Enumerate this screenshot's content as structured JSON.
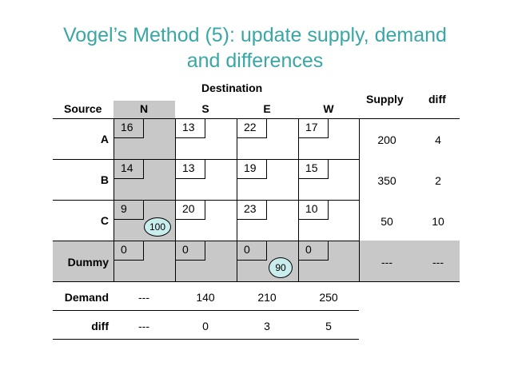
{
  "title": {
    "line1": "Vogel’s Method (5): update supply, demand",
    "line2": "and differences"
  },
  "headers": {
    "destination": "Destination",
    "source": "Source",
    "supply": "Supply",
    "diff": "diff"
  },
  "columns": [
    "N",
    "S",
    "E",
    "W"
  ],
  "rows": [
    {
      "label": "A",
      "costs": [
        "16",
        "13",
        "22",
        "17"
      ],
      "supply": "200",
      "diff": "4"
    },
    {
      "label": "B",
      "costs": [
        "14",
        "13",
        "19",
        "15"
      ],
      "supply": "350",
      "diff": "2"
    },
    {
      "label": "C",
      "costs": [
        "9",
        "20",
        "23",
        "10"
      ],
      "supply": "50",
      "diff": "10"
    },
    {
      "label": "Dummy",
      "costs": [
        "0",
        "0",
        "0",
        "0"
      ],
      "supply": "---",
      "diff": "---"
    }
  ],
  "allocations": {
    "C_N": "100",
    "Dummy_E": "90"
  },
  "demand": {
    "label": "Demand",
    "values": [
      "---",
      "140",
      "210",
      "250"
    ]
  },
  "col_diff": {
    "label": "diff",
    "values": [
      "---",
      "0",
      "3",
      "5"
    ]
  }
}
